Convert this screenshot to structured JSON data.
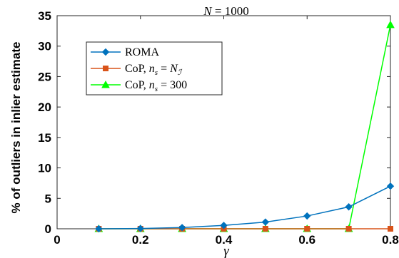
{
  "chart_data": {
    "type": "line",
    "title": "N = 1000",
    "xlabel": "γ",
    "ylabel": "% of outliers in inlier estimate",
    "xlim": [
      0,
      0.8
    ],
    "ylim": [
      0,
      35
    ],
    "xticks": [
      0,
      0.2,
      0.4,
      0.6,
      0.8
    ],
    "xtick_labels": [
      "0",
      "0.2",
      "0.4",
      "0.6",
      "0.8"
    ],
    "yticks": [
      0,
      5,
      10,
      15,
      20,
      25,
      30,
      35
    ],
    "ytick_labels": [
      "0",
      "5",
      "10",
      "15",
      "20",
      "25",
      "30",
      "35"
    ],
    "grid": false,
    "legend_position": "upper-left",
    "x": [
      0.1,
      0.2,
      0.3,
      0.4,
      0.5,
      0.6,
      0.7,
      0.8
    ],
    "series": [
      {
        "name": "ROMA",
        "color": "#0072BD",
        "marker": "diamond",
        "values": [
          0.0,
          0.05,
          0.2,
          0.55,
          1.1,
          2.1,
          3.6,
          7.0
        ]
      },
      {
        "name": "CoP, n_s = N_I",
        "color": "#D95319",
        "marker": "square",
        "values": [
          0,
          0,
          0,
          0,
          0,
          0,
          0,
          0
        ]
      },
      {
        "name": "CoP, n_s = 300",
        "color": "#00FF00",
        "marker": "triangle",
        "values": [
          0,
          0,
          0,
          0,
          0,
          0,
          0,
          33.5
        ]
      }
    ]
  }
}
